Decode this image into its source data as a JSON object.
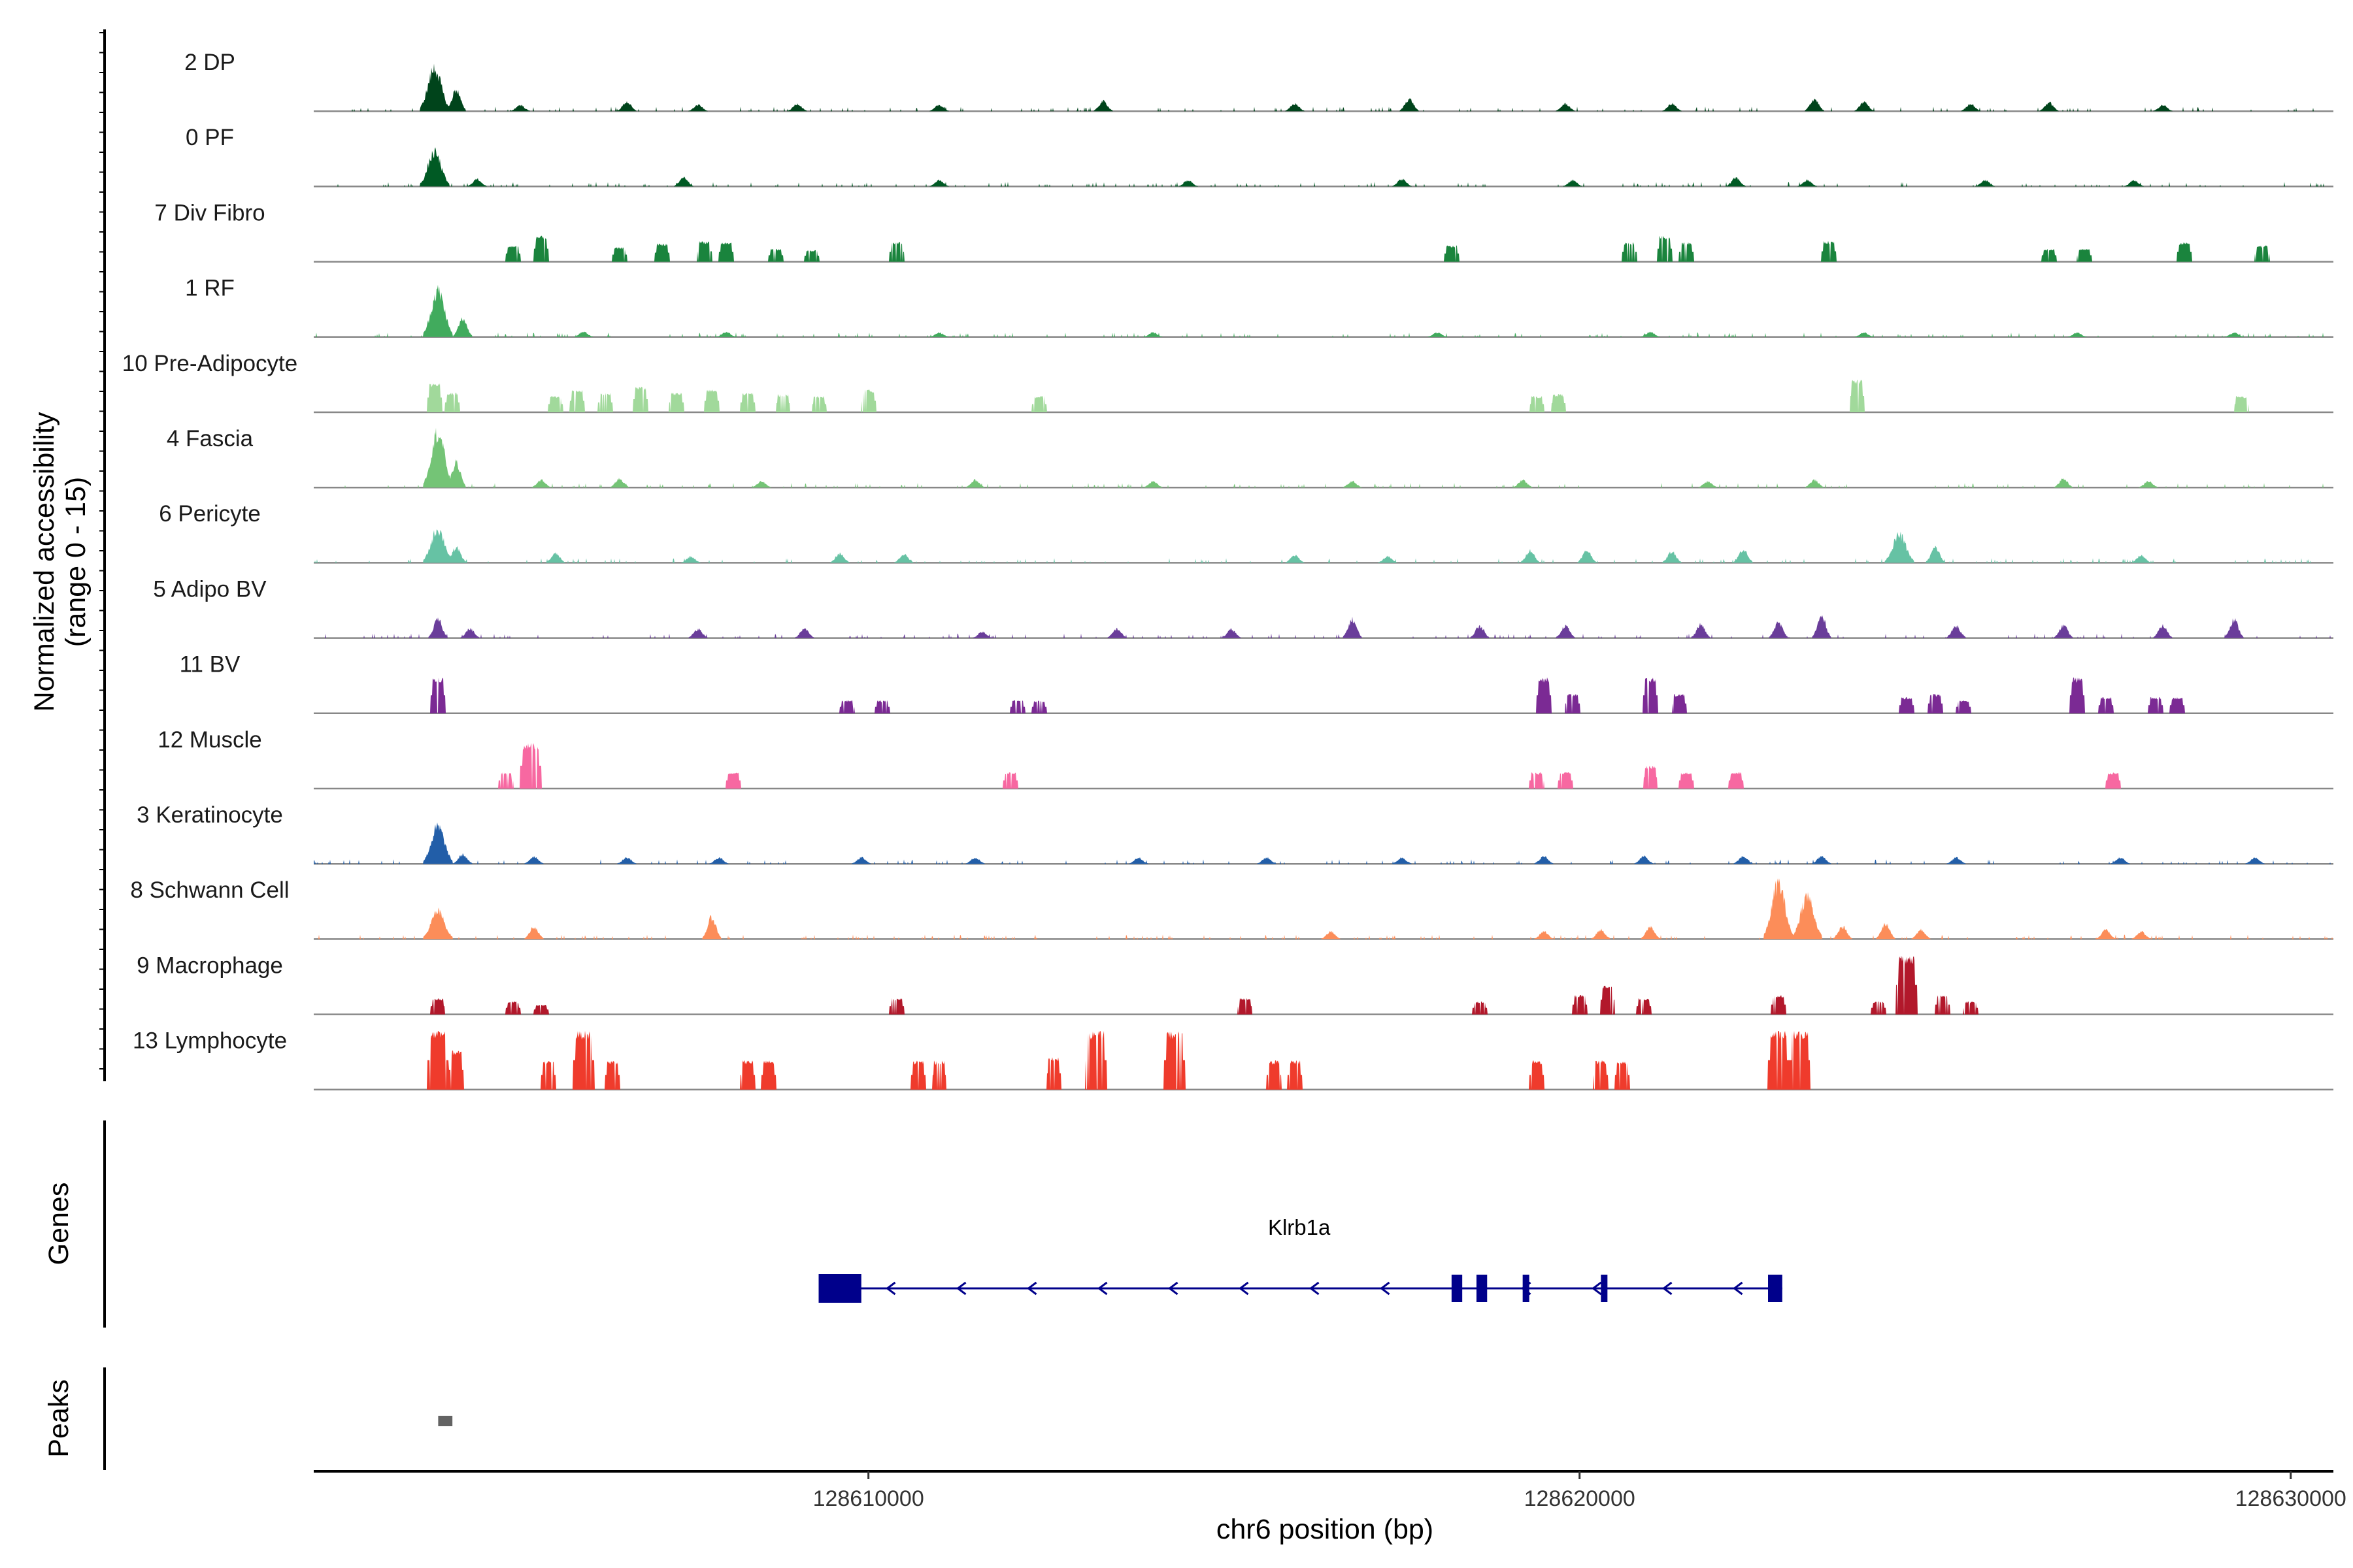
{
  "chart_data": {
    "type": "area",
    "title": "",
    "ylabel_line1": "Normalized accessibility",
    "ylabel_line2": "(range 0 - 15)",
    "y_range": [
      0,
      15
    ],
    "xlabel": "chr6 position (bp)",
    "chromosome": "chr6",
    "xlim": [
      128602200,
      128630600
    ],
    "x_ticks": [
      128610000,
      128620000,
      128630000
    ],
    "x_tick_labels": [
      "128610000",
      "128620000",
      "128630000"
    ],
    "genes_label": "Genes",
    "peaks_label": "Peaks",
    "tracks": [
      {
        "name": "2 DP",
        "color": "#00441b",
        "style": "dense",
        "peaks": [
          [
            128603900,
            0.7
          ],
          [
            128604200,
            0.35
          ],
          [
            128605100,
            0.1
          ],
          [
            128606600,
            0.15
          ],
          [
            128607600,
            0.1
          ],
          [
            128609000,
            0.12
          ],
          [
            128611000,
            0.1
          ],
          [
            128613300,
            0.16
          ],
          [
            128616000,
            0.12
          ],
          [
            128617600,
            0.2
          ],
          [
            128619800,
            0.12
          ],
          [
            128621300,
            0.12
          ],
          [
            128623300,
            0.2
          ],
          [
            128624000,
            0.15
          ],
          [
            128625500,
            0.12
          ],
          [
            128626600,
            0.14
          ],
          [
            128628200,
            0.1
          ]
        ]
      },
      {
        "name": "0 PF",
        "color": "#005a24",
        "style": "dense",
        "peaks": [
          [
            128603900,
            0.55
          ],
          [
            128604500,
            0.12
          ],
          [
            128607400,
            0.15
          ],
          [
            128611000,
            0.1
          ],
          [
            128614500,
            0.1
          ],
          [
            128617500,
            0.12
          ],
          [
            128619900,
            0.1
          ],
          [
            128622200,
            0.14
          ],
          [
            128623200,
            0.1
          ],
          [
            128625700,
            0.1
          ],
          [
            128627800,
            0.1
          ]
        ]
      },
      {
        "name": "7 Div Fibro",
        "color": "#1a843d",
        "style": "sparse",
        "peaks": [
          [
            128605000,
            0.25
          ],
          [
            128605400,
            0.4
          ],
          [
            128606500,
            0.22
          ],
          [
            128607100,
            0.28
          ],
          [
            128607700,
            0.32
          ],
          [
            128608000,
            0.3
          ],
          [
            128608700,
            0.2
          ],
          [
            128609200,
            0.18
          ],
          [
            128610400,
            0.3
          ],
          [
            128618200,
            0.25
          ],
          [
            128620700,
            0.3
          ],
          [
            128621200,
            0.4
          ],
          [
            128621500,
            0.3
          ],
          [
            128623500,
            0.32
          ],
          [
            128626600,
            0.2
          ],
          [
            128627100,
            0.2
          ],
          [
            128628500,
            0.3
          ],
          [
            128629600,
            0.25
          ]
        ]
      },
      {
        "name": "1 RF",
        "color": "#41ab5d",
        "style": "dense",
        "peaks": [
          [
            128603950,
            0.75
          ],
          [
            128604300,
            0.3
          ],
          [
            128606000,
            0.08
          ],
          [
            128608000,
            0.08
          ],
          [
            128611000,
            0.07
          ],
          [
            128614000,
            0.07
          ],
          [
            128618000,
            0.07
          ],
          [
            128621000,
            0.08
          ],
          [
            128624000,
            0.07
          ],
          [
            128627000,
            0.07
          ],
          [
            128629200,
            0.07
          ]
        ]
      },
      {
        "name": "10 Pre-Adipocyte",
        "color": "#a1d99b",
        "style": "sparse",
        "peaks": [
          [
            128603900,
            0.45
          ],
          [
            128604150,
            0.3
          ],
          [
            128605600,
            0.25
          ],
          [
            128605900,
            0.35
          ],
          [
            128606300,
            0.3
          ],
          [
            128606800,
            0.4
          ],
          [
            128607300,
            0.3
          ],
          [
            128607800,
            0.35
          ],
          [
            128608300,
            0.3
          ],
          [
            128608800,
            0.28
          ],
          [
            128609300,
            0.25
          ],
          [
            128610000,
            0.35
          ],
          [
            128612400,
            0.25
          ],
          [
            128619400,
            0.25
          ],
          [
            128619700,
            0.28
          ],
          [
            128623900,
            0.5
          ],
          [
            128629300,
            0.25
          ]
        ]
      },
      {
        "name": "4 Fascia",
        "color": "#74c476",
        "style": "dense",
        "peaks": [
          [
            128603950,
            0.9
          ],
          [
            128604200,
            0.4
          ],
          [
            128605400,
            0.12
          ],
          [
            128606500,
            0.14
          ],
          [
            128608500,
            0.1
          ],
          [
            128611500,
            0.12
          ],
          [
            128614000,
            0.1
          ],
          [
            128616800,
            0.1
          ],
          [
            128619200,
            0.12
          ],
          [
            128621800,
            0.1
          ],
          [
            128623300,
            0.12
          ],
          [
            128626800,
            0.14
          ],
          [
            128628000,
            0.1
          ]
        ]
      },
      {
        "name": "6 Pericyte",
        "color": "#66c2a4",
        "style": "dense",
        "peaks": [
          [
            128603950,
            0.55
          ],
          [
            128604200,
            0.25
          ],
          [
            128605600,
            0.15
          ],
          [
            128607500,
            0.1
          ],
          [
            128609600,
            0.15
          ],
          [
            128610500,
            0.14
          ],
          [
            128616000,
            0.12
          ],
          [
            128617300,
            0.1
          ],
          [
            128619300,
            0.2
          ],
          [
            128620100,
            0.2
          ],
          [
            128621300,
            0.18
          ],
          [
            128622300,
            0.22
          ],
          [
            128624500,
            0.45
          ],
          [
            128625000,
            0.25
          ],
          [
            128627900,
            0.12
          ]
        ]
      },
      {
        "name": "5 Adipo BV",
        "color": "#6a3d9a",
        "style": "dense",
        "peaks": [
          [
            128603950,
            0.3
          ],
          [
            128604400,
            0.15
          ],
          [
            128607600,
            0.15
          ],
          [
            128609100,
            0.15
          ],
          [
            128611600,
            0.1
          ],
          [
            128613500,
            0.15
          ],
          [
            128615100,
            0.14
          ],
          [
            128616800,
            0.3
          ],
          [
            128618600,
            0.2
          ],
          [
            128619800,
            0.2
          ],
          [
            128621700,
            0.22
          ],
          [
            128622800,
            0.25
          ],
          [
            128623400,
            0.35
          ],
          [
            128625300,
            0.2
          ],
          [
            128626800,
            0.2
          ],
          [
            128628200,
            0.2
          ],
          [
            128629200,
            0.3
          ]
        ]
      },
      {
        "name": "11 BV",
        "color": "#7b2a94",
        "style": "sparse",
        "peaks": [
          [
            128603950,
            0.55
          ],
          [
            128609700,
            0.2
          ],
          [
            128610200,
            0.2
          ],
          [
            128612100,
            0.2
          ],
          [
            128612400,
            0.2
          ],
          [
            128619500,
            0.55
          ],
          [
            128619900,
            0.3
          ],
          [
            128621000,
            0.55
          ],
          [
            128621400,
            0.3
          ],
          [
            128624600,
            0.25
          ],
          [
            128625000,
            0.3
          ],
          [
            128625400,
            0.2
          ],
          [
            128627000,
            0.55
          ],
          [
            128627400,
            0.25
          ],
          [
            128628100,
            0.25
          ],
          [
            128628400,
            0.25
          ]
        ]
      },
      {
        "name": "12 Muscle",
        "color": "#f768a1",
        "style": "sparse",
        "peaks": [
          [
            128604900,
            0.25
          ],
          [
            128605250,
            0.7
          ],
          [
            128608100,
            0.25
          ],
          [
            128612000,
            0.25
          ],
          [
            128619400,
            0.25
          ],
          [
            128619800,
            0.25
          ],
          [
            128621000,
            0.35
          ],
          [
            128621500,
            0.25
          ],
          [
            128622200,
            0.25
          ],
          [
            128627500,
            0.25
          ]
        ]
      },
      {
        "name": "3 Keratinocyte",
        "color": "#225ea8",
        "style": "dense",
        "peaks": [
          [
            128603950,
            0.6
          ],
          [
            128604300,
            0.15
          ],
          [
            128605300,
            0.12
          ],
          [
            128606600,
            0.1
          ],
          [
            128607900,
            0.1
          ],
          [
            128609900,
            0.1
          ],
          [
            128611500,
            0.1
          ],
          [
            128613800,
            0.1
          ],
          [
            128615600,
            0.1
          ],
          [
            128617500,
            0.1
          ],
          [
            128619500,
            0.12
          ],
          [
            128620900,
            0.12
          ],
          [
            128622300,
            0.12
          ],
          [
            128623400,
            0.12
          ],
          [
            128625300,
            0.1
          ],
          [
            128627600,
            0.1
          ],
          [
            128629500,
            0.1
          ]
        ]
      },
      {
        "name": "8 Schwann Cell",
        "color": "#fc8d59",
        "style": "dense",
        "peaks": [
          [
            128603950,
            0.45
          ],
          [
            128605300,
            0.2
          ],
          [
            128607800,
            0.35
          ],
          [
            128616500,
            0.12
          ],
          [
            128619500,
            0.12
          ],
          [
            128620300,
            0.15
          ],
          [
            128621000,
            0.2
          ],
          [
            128622800,
            0.9
          ],
          [
            128623200,
            0.7
          ],
          [
            128623700,
            0.2
          ],
          [
            128624300,
            0.25
          ],
          [
            128624800,
            0.15
          ],
          [
            128627400,
            0.15
          ],
          [
            128627900,
            0.12
          ]
        ]
      },
      {
        "name": "9 Macrophage",
        "color": "#b2182b",
        "style": "sparse",
        "peaks": [
          [
            128603950,
            0.25
          ],
          [
            128605000,
            0.2
          ],
          [
            128605400,
            0.15
          ],
          [
            128610400,
            0.25
          ],
          [
            128615300,
            0.25
          ],
          [
            128618600,
            0.2
          ],
          [
            128620000,
            0.3
          ],
          [
            128620400,
            0.45
          ],
          [
            128620900,
            0.25
          ],
          [
            128622800,
            0.3
          ],
          [
            128624200,
            0.2
          ],
          [
            128624600,
            0.9
          ],
          [
            128625100,
            0.3
          ],
          [
            128625500,
            0.2
          ]
        ]
      },
      {
        "name": "13 Lymphocyte",
        "color": "#ef3b2c",
        "style": "sparse",
        "peaks": [
          [
            128603950,
            0.9
          ],
          [
            128604200,
            0.6
          ],
          [
            128605500,
            0.45
          ],
          [
            128606000,
            0.9
          ],
          [
            128606400,
            0.45
          ],
          [
            128608300,
            0.45
          ],
          [
            128608600,
            0.45
          ],
          [
            128610700,
            0.45
          ],
          [
            128611000,
            0.45
          ],
          [
            128612600,
            0.5
          ],
          [
            128613200,
            0.9
          ],
          [
            128614300,
            0.9
          ],
          [
            128615700,
            0.45
          ],
          [
            128616000,
            0.45
          ],
          [
            128619400,
            0.45
          ],
          [
            128620300,
            0.45
          ],
          [
            128620600,
            0.45
          ],
          [
            128622800,
            0.9
          ],
          [
            128623100,
            0.9
          ]
        ]
      }
    ],
    "gene": {
      "name": "Klrb1a",
      "strand": "-",
      "start": 128609300,
      "end": 128622850,
      "exons": [
        [
          128609300,
          128609900
        ],
        [
          128618200,
          128618350
        ],
        [
          128618550,
          128618700
        ],
        [
          128619200,
          128619280
        ],
        [
          128620300,
          128620380
        ],
        [
          128622650,
          128622850
        ]
      ],
      "color": "#00008b"
    },
    "peaks_track": [
      {
        "start": 128603950,
        "end": 128604150
      }
    ],
    "peak_color": "#636363"
  }
}
